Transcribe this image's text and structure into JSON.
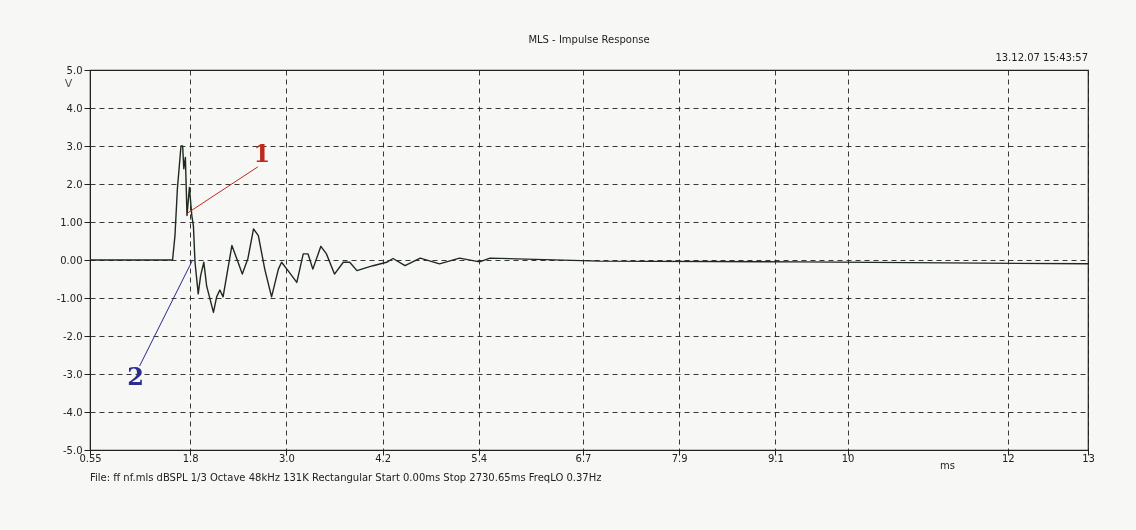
{
  "chart_data": {
    "type": "line",
    "title": "MLS - Impulse Response",
    "xlabel": "ms",
    "ylabel": "V",
    "x": [
      0.55,
      1.58,
      1.61,
      1.64,
      1.685,
      1.706,
      1.72,
      1.74,
      1.76,
      1.79,
      1.82,
      1.84,
      1.86,
      1.9,
      1.93,
      1.97,
      2.005,
      2.09,
      2.13,
      2.17,
      2.21,
      2.32,
      2.38,
      2.45,
      2.52,
      2.59,
      2.65,
      2.73,
      2.815,
      2.9,
      2.94,
      3.02,
      3.13,
      3.21,
      3.27,
      3.33,
      3.43,
      3.5,
      3.6,
      3.71,
      3.79,
      3.88,
      4.08,
      4.25,
      4.33,
      4.48,
      4.67,
      4.91,
      5.16,
      5.41,
      5.54,
      6.91,
      9.4,
      13
    ],
    "series": [
      {
        "color": "#1e2a1e",
        "values": [
          0,
          0,
          0.64,
          1.87,
          3.0,
          3.0,
          2.4,
          2.7,
          1.17,
          1.91,
          1.17,
          0.9,
          -0.06,
          -0.89,
          -0.41,
          -0.06,
          -0.68,
          -1.38,
          -0.97,
          -0.79,
          -0.97,
          0.38,
          0.04,
          -0.37,
          0.04,
          0.82,
          0.64,
          -0.24,
          -0.97,
          -0.24,
          -0.06,
          -0.28,
          -0.59,
          0.16,
          0.16,
          -0.24,
          0.36,
          0.16,
          -0.37,
          -0.06,
          -0.06,
          -0.28,
          -0.15,
          -0.06,
          0.04,
          -0.15,
          0.05,
          -0.1,
          0.05,
          -0.05,
          0.05,
          -0.03,
          -0.05,
          -0.1
        ]
      }
    ],
    "xlim": [
      0.55,
      13
    ],
    "xticks": [
      0.55,
      1.8,
      {
        "value": 3,
        "label": "3.0"
      },
      4.2,
      5.4,
      6.7,
      7.9,
      9.1,
      10,
      12,
      13
    ],
    "ylim": [
      -5,
      5
    ],
    "yticks": [
      {
        "value": -5,
        "label": "-5.0"
      },
      {
        "value": -4,
        "label": "-4.0"
      },
      {
        "value": -3,
        "label": "-3.0"
      },
      {
        "value": -2,
        "label": "-2.0"
      },
      {
        "value": -1,
        "label": "-1.00"
      },
      {
        "value": 0,
        "label": "0.00"
      },
      {
        "value": 1,
        "label": "1.00"
      },
      {
        "value": 2,
        "label": "2.0"
      },
      {
        "value": 3,
        "label": "3.0"
      },
      {
        "value": 4,
        "label": "4.0"
      },
      {
        "value": 5,
        "label": "5.0"
      }
    ],
    "grid": true,
    "marker": "none",
    "line_style": "solid",
    "annotations": [
      "13.12.07 15:43:57",
      "File: ff nf.mls   dBSPL   1/3 Octave   48kHz   131K   Rectangular   Start 0.00ms   Stop 2730.65ms   FreqLO 0.37Hz",
      {
        "text": "1",
        "x": 1.77,
        "y": 1.24
      },
      {
        "text": "2",
        "x": 1.83,
        "y": 0
      }
    ]
  }
}
